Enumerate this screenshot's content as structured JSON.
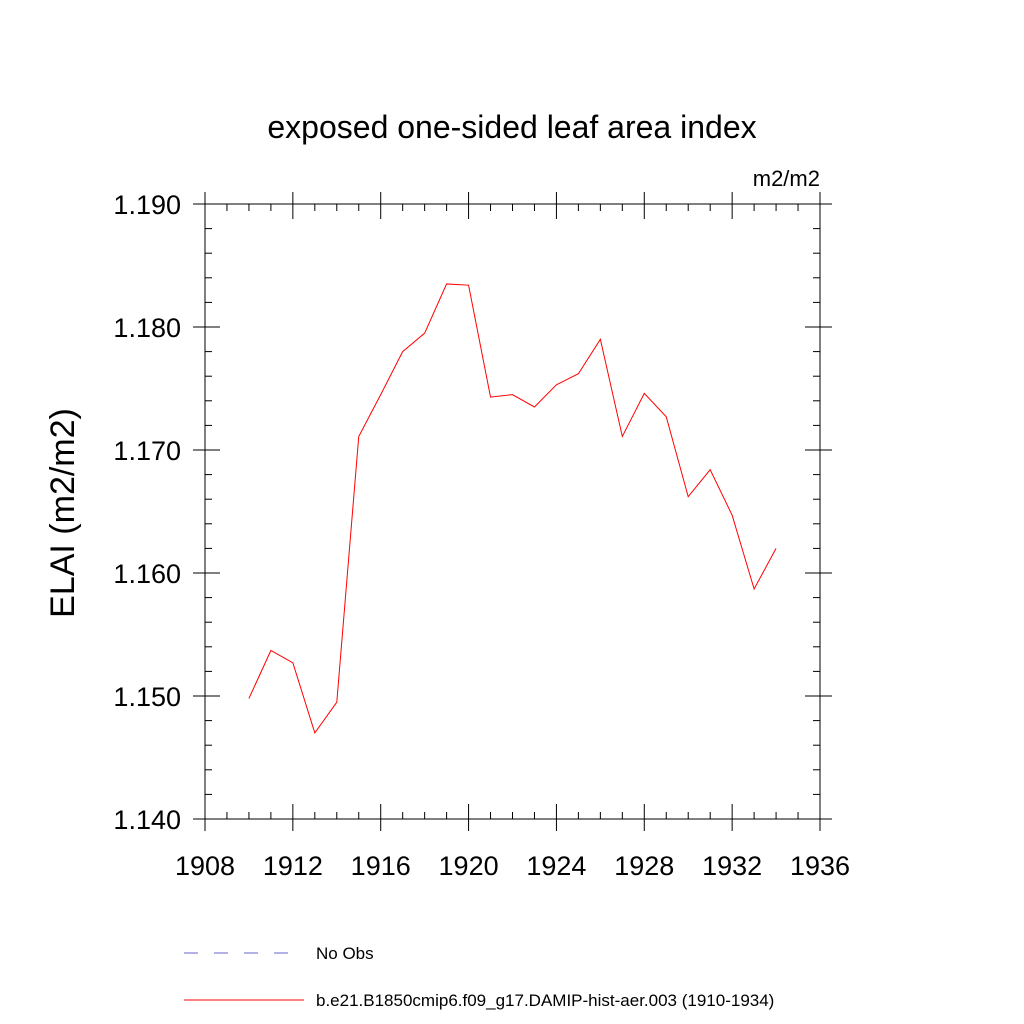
{
  "chart_data": {
    "type": "line",
    "title": "exposed one-sided leaf area index",
    "units": "m2/m2",
    "ylabel": "ELAI  (m2/m2)",
    "xlabel": "",
    "xlim": [
      1908,
      1936
    ],
    "ylim": [
      1.14,
      1.19
    ],
    "x_ticks": [
      "1908",
      "1912",
      "1916",
      "1920",
      "1924",
      "1928",
      "1932",
      "1936"
    ],
    "y_ticks": [
      "1.140",
      "1.150",
      "1.160",
      "1.170",
      "1.180",
      "1.190"
    ],
    "x_minor_step": 1,
    "y_minor_step": 0.002,
    "grid": false,
    "legend_position": "bottom",
    "series": [
      {
        "name": "No Obs",
        "color": "#6666cc",
        "style": "dashed",
        "x": [],
        "values": []
      },
      {
        "name": "b.e21.B1850cmip6.f09_g17.DAMIP-hist-aer.003 (1910-1934)",
        "color": "#ff0000",
        "style": "solid",
        "x": [
          1910,
          1911,
          1912,
          1913,
          1914,
          1915,
          1916,
          1917,
          1918,
          1919,
          1920,
          1921,
          1922,
          1923,
          1924,
          1925,
          1926,
          1927,
          1928,
          1929,
          1930,
          1931,
          1932,
          1933,
          1934
        ],
        "values": [
          1.1498,
          1.1537,
          1.1527,
          1.147,
          1.1495,
          1.1711,
          1.1745,
          1.178,
          1.1795,
          1.1835,
          1.1834,
          1.1743,
          1.1745,
          1.1735,
          1.1753,
          1.1762,
          1.179,
          1.1711,
          1.1746,
          1.1727,
          1.1662,
          1.1684,
          1.1647,
          1.1587,
          1.162
        ]
      }
    ]
  }
}
